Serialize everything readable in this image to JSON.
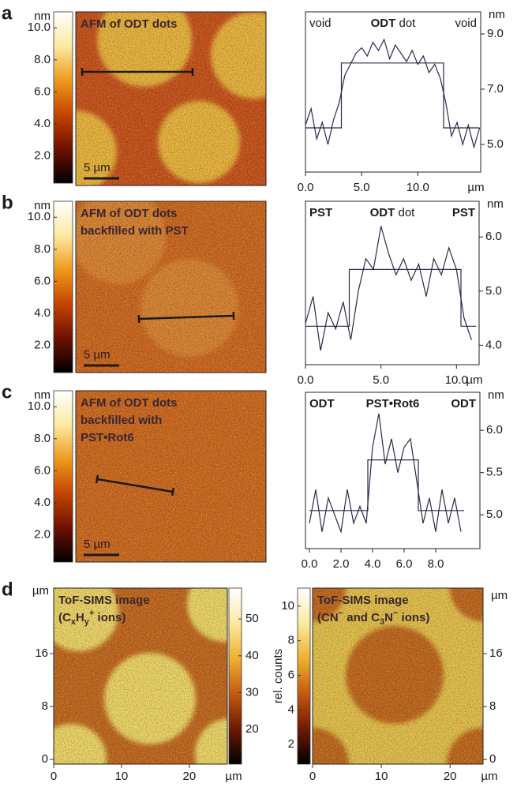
{
  "chart_data": [
    {
      "type": "image",
      "panel": "a",
      "title": [
        [
          {
            "text": "AFM of ODT dots"
          }
        ]
      ],
      "scale_bar": "5 µm",
      "colorbar": {
        "label": "nm",
        "lim": [
          0.3,
          11.0
        ],
        "colormap": [
          "#000000",
          "#6e1000",
          "#c44400",
          "#ee9a1e",
          "#fbeaa0",
          "#ffffff"
        ],
        "ticks": [
          {
            "value": 2,
            "label": "2.0"
          },
          {
            "value": 4,
            "label": "4.0"
          },
          {
            "value": 6,
            "label": "6.0"
          },
          {
            "value": 8,
            "label": "8.0"
          },
          {
            "value": 10,
            "label": "10.0"
          }
        ]
      }
    },
    {
      "type": "line",
      "annotations": [
        [
          {
            "text": "void",
            "bold": false
          }
        ],
        [
          {
            "text": "ODT",
            "bold": true
          },
          {
            "text": " dot",
            "bold": false
          }
        ],
        [
          {
            "text": "void",
            "bold": false
          }
        ]
      ],
      "xlim": [
        0,
        15.6
      ],
      "ylim": [
        4.0,
        9.8
      ],
      "xunit": "µm",
      "yunit": "nm",
      "xticks": [
        {
          "value": 0,
          "label": "0.0"
        },
        {
          "value": 5,
          "label": "5.0"
        },
        {
          "value": 10,
          "label": "10.0"
        }
      ],
      "yticks": [
        {
          "value": 5,
          "label": "5.0"
        },
        {
          "value": 7,
          "label": "7.0"
        },
        {
          "value": 9,
          "label": "9.0"
        }
      ],
      "series": [
        {
          "color": "#2a2a4a",
          "x": [
            0,
            0.5,
            1,
            1.5,
            2,
            2.5,
            3,
            3.5,
            4,
            4.5,
            5,
            5.5,
            6,
            6.5,
            7,
            7.5,
            8,
            8.5,
            9,
            9.5,
            10,
            10.5,
            11,
            11.5,
            12,
            12.5,
            13,
            13.5,
            14,
            14.5,
            15,
            15.5
          ],
          "values": [
            5.7,
            6.3,
            5.2,
            5.8,
            5.0,
            5.9,
            6.5,
            7.5,
            7.9,
            8.3,
            8.5,
            8.2,
            8.7,
            8.4,
            8.8,
            8.1,
            8.6,
            8.3,
            8.0,
            8.4,
            7.9,
            8.2,
            7.6,
            7.9,
            7.4,
            6.5,
            5.3,
            5.8,
            5.0,
            5.7,
            4.9,
            5.6
          ]
        },
        {
          "color": "#2a2a4a",
          "x": [
            0,
            3.2,
            3.2,
            12.3,
            12.3,
            15.5
          ],
          "values": [
            5.6,
            5.6,
            7.95,
            7.95,
            5.6,
            5.6
          ]
        }
      ]
    },
    {
      "type": "image",
      "panel": "b",
      "title": [
        [
          {
            "text": "AFM of ODT dots"
          }
        ],
        [
          {
            "text": "backfilled with PST"
          }
        ]
      ],
      "scale_bar": "5 µm",
      "colorbar": {
        "label": "nm",
        "lim": [
          0.3,
          11.0
        ],
        "colormap": [
          "#000000",
          "#6e1000",
          "#c44400",
          "#ee9a1e",
          "#fbeaa0",
          "#ffffff"
        ],
        "ticks": [
          {
            "value": 2,
            "label": "2.0"
          },
          {
            "value": 4,
            "label": "4.0"
          },
          {
            "value": 6,
            "label": "6.0"
          },
          {
            "value": 8,
            "label": "8.0"
          },
          {
            "value": 10,
            "label": "10.0"
          }
        ]
      }
    },
    {
      "type": "line",
      "annotations": [
        [
          {
            "text": "PST",
            "bold": true
          }
        ],
        [
          {
            "text": "ODT",
            "bold": true
          },
          {
            "text": " dot",
            "bold": false
          }
        ],
        [
          {
            "text": "PST",
            "bold": true
          }
        ]
      ],
      "xlim": [
        0,
        11.5
      ],
      "ylim": [
        3.64,
        6.66
      ],
      "xunit": "µm",
      "yunit": "nm",
      "xticks": [
        {
          "value": 0,
          "label": "0.0"
        },
        {
          "value": 5,
          "label": "5.0"
        },
        {
          "value": 10,
          "label": "10.0"
        }
      ],
      "yticks": [
        {
          "value": 4,
          "label": "4.0"
        },
        {
          "value": 5,
          "label": "5.0"
        },
        {
          "value": 6,
          "label": "6.0"
        }
      ],
      "series": [
        {
          "color": "#2a2a4a",
          "x": [
            0,
            0.5,
            1,
            1.5,
            2,
            2.5,
            3,
            3.5,
            4,
            4.5,
            5,
            5.5,
            6,
            6.5,
            7,
            7.5,
            8,
            8.5,
            9,
            9.5,
            10,
            10.5,
            11
          ],
          "values": [
            4.4,
            4.9,
            3.9,
            4.6,
            4.3,
            4.8,
            4.1,
            5.0,
            5.6,
            5.4,
            6.2,
            5.7,
            5.3,
            5.6,
            5.2,
            5.5,
            4.9,
            5.6,
            5.3,
            5.8,
            5.4,
            4.5,
            4.1
          ]
        },
        {
          "color": "#2a2a4a",
          "x": [
            0,
            2.9,
            2.9,
            10.3,
            10.3,
            11.3
          ],
          "values": [
            4.35,
            4.35,
            5.4,
            5.4,
            4.35,
            4.35
          ]
        }
      ]
    },
    {
      "type": "image",
      "panel": "c",
      "title": [
        [
          {
            "text": "AFM of ODT dots"
          }
        ],
        [
          {
            "text": "backfilled with"
          }
        ],
        [
          {
            "text": "PST•Rot6"
          }
        ]
      ],
      "scale_bar": "5 µm",
      "colorbar": {
        "label": "nm",
        "lim": [
          0.3,
          11.0
        ],
        "colormap": [
          "#000000",
          "#6e1000",
          "#c44400",
          "#ee9a1e",
          "#fbeaa0",
          "#ffffff"
        ],
        "ticks": [
          {
            "value": 2,
            "label": "2.0"
          },
          {
            "value": 4,
            "label": "4.0"
          },
          {
            "value": 6,
            "label": "6.0"
          },
          {
            "value": 8,
            "label": "8.0"
          },
          {
            "value": 10,
            "label": "10.0"
          }
        ]
      }
    },
    {
      "type": "line",
      "annotations": [
        [
          {
            "text": "ODT",
            "bold": true
          }
        ],
        [
          {
            "text": "PST•Rot6",
            "bold": true
          }
        ],
        [
          {
            "text": "ODT",
            "bold": true
          }
        ]
      ],
      "xlim": [
        -0.25,
        10.8
      ],
      "ylim": [
        4.6,
        6.45
      ],
      "yunit": "nm",
      "xticks": [
        {
          "value": 0,
          "label": "0.0"
        },
        {
          "value": 2,
          "label": "2.0"
        },
        {
          "value": 4,
          "label": "4.0"
        },
        {
          "value": 6,
          "label": "6.0"
        },
        {
          "value": 8,
          "label": "8.0"
        }
      ],
      "yticks": [
        {
          "value": 5,
          "label": "5.0"
        },
        {
          "value": 5.5,
          "label": "5.5"
        },
        {
          "value": 6,
          "label": "6.0"
        }
      ],
      "series": [
        {
          "color": "#2a2a4a",
          "x": [
            0,
            0.4,
            0.8,
            1.2,
            1.6,
            2.0,
            2.4,
            2.8,
            3.2,
            3.6,
            4.0,
            4.4,
            4.8,
            5.2,
            5.6,
            6.0,
            6.4,
            6.8,
            7.2,
            7.6,
            8.0,
            8.4,
            8.8,
            9.2,
            9.6
          ],
          "values": [
            4.9,
            5.3,
            4.8,
            5.2,
            5.0,
            4.8,
            5.3,
            4.9,
            5.1,
            4.9,
            5.8,
            6.2,
            5.6,
            5.9,
            5.5,
            5.8,
            5.9,
            5.4,
            4.9,
            5.2,
            4.8,
            5.3,
            4.9,
            5.2,
            4.8
          ]
        },
        {
          "color": "#2a2a4a",
          "x": [
            0,
            3.7,
            3.7,
            6.9,
            6.9,
            9.8
          ],
          "values": [
            5.05,
            5.05,
            5.65,
            5.65,
            5.05,
            5.05
          ]
        }
      ]
    },
    {
      "type": "image",
      "panel": "d",
      "title": [
        [
          {
            "text": "ToF-SIMS image"
          }
        ],
        [
          {
            "text": "(C"
          },
          {
            "text": "x",
            "script": "sub"
          },
          {
            "text": "H"
          },
          {
            "text": "y",
            "script": "sub"
          },
          {
            "text": "+",
            "script": "super"
          },
          {
            "text": " ions)"
          }
        ]
      ],
      "xlim": [
        0,
        25.6
      ],
      "ylim": [
        -0.7,
        25.9
      ],
      "xticks": [
        0,
        10,
        20
      ],
      "yticks": [
        0,
        8,
        16
      ],
      "xunit": "µm",
      "yunit": "µm",
      "colorbar": {
        "lim": [
          10.6,
          58.4
        ],
        "colormap": [
          "#000000",
          "#6e1a00",
          "#c45a10",
          "#eeb030",
          "#fbeaa0",
          "#ffffff"
        ],
        "ticks": [
          20,
          30,
          40,
          50
        ]
      }
    },
    {
      "type": "image",
      "title": [
        [
          {
            "text": "ToF-SIMS image"
          }
        ],
        [
          {
            "text": "(CN"
          },
          {
            "text": "−",
            "script": "super"
          },
          {
            "text": " and C"
          },
          {
            "text": "3",
            "script": "sub"
          },
          {
            "text": "N"
          },
          {
            "text": "−",
            "script": "super"
          },
          {
            "text": " ions)"
          }
        ]
      ],
      "xlim": [
        0,
        24.8
      ],
      "ylim": [
        -0.7,
        25.9
      ],
      "xticks": [
        0,
        10,
        20
      ],
      "yticks": [
        0,
        8,
        16
      ],
      "xunit": "µm",
      "yunit": "µm",
      "colorbar": {
        "label": "rel. counts",
        "lim": [
          0.86,
          11.05
        ],
        "colormap": [
          "#000000",
          "#6e1a00",
          "#c45a10",
          "#eeb030",
          "#fbeaa0",
          "#ffffff"
        ],
        "ticks": [
          2,
          4,
          6,
          8,
          10
        ]
      }
    }
  ]
}
